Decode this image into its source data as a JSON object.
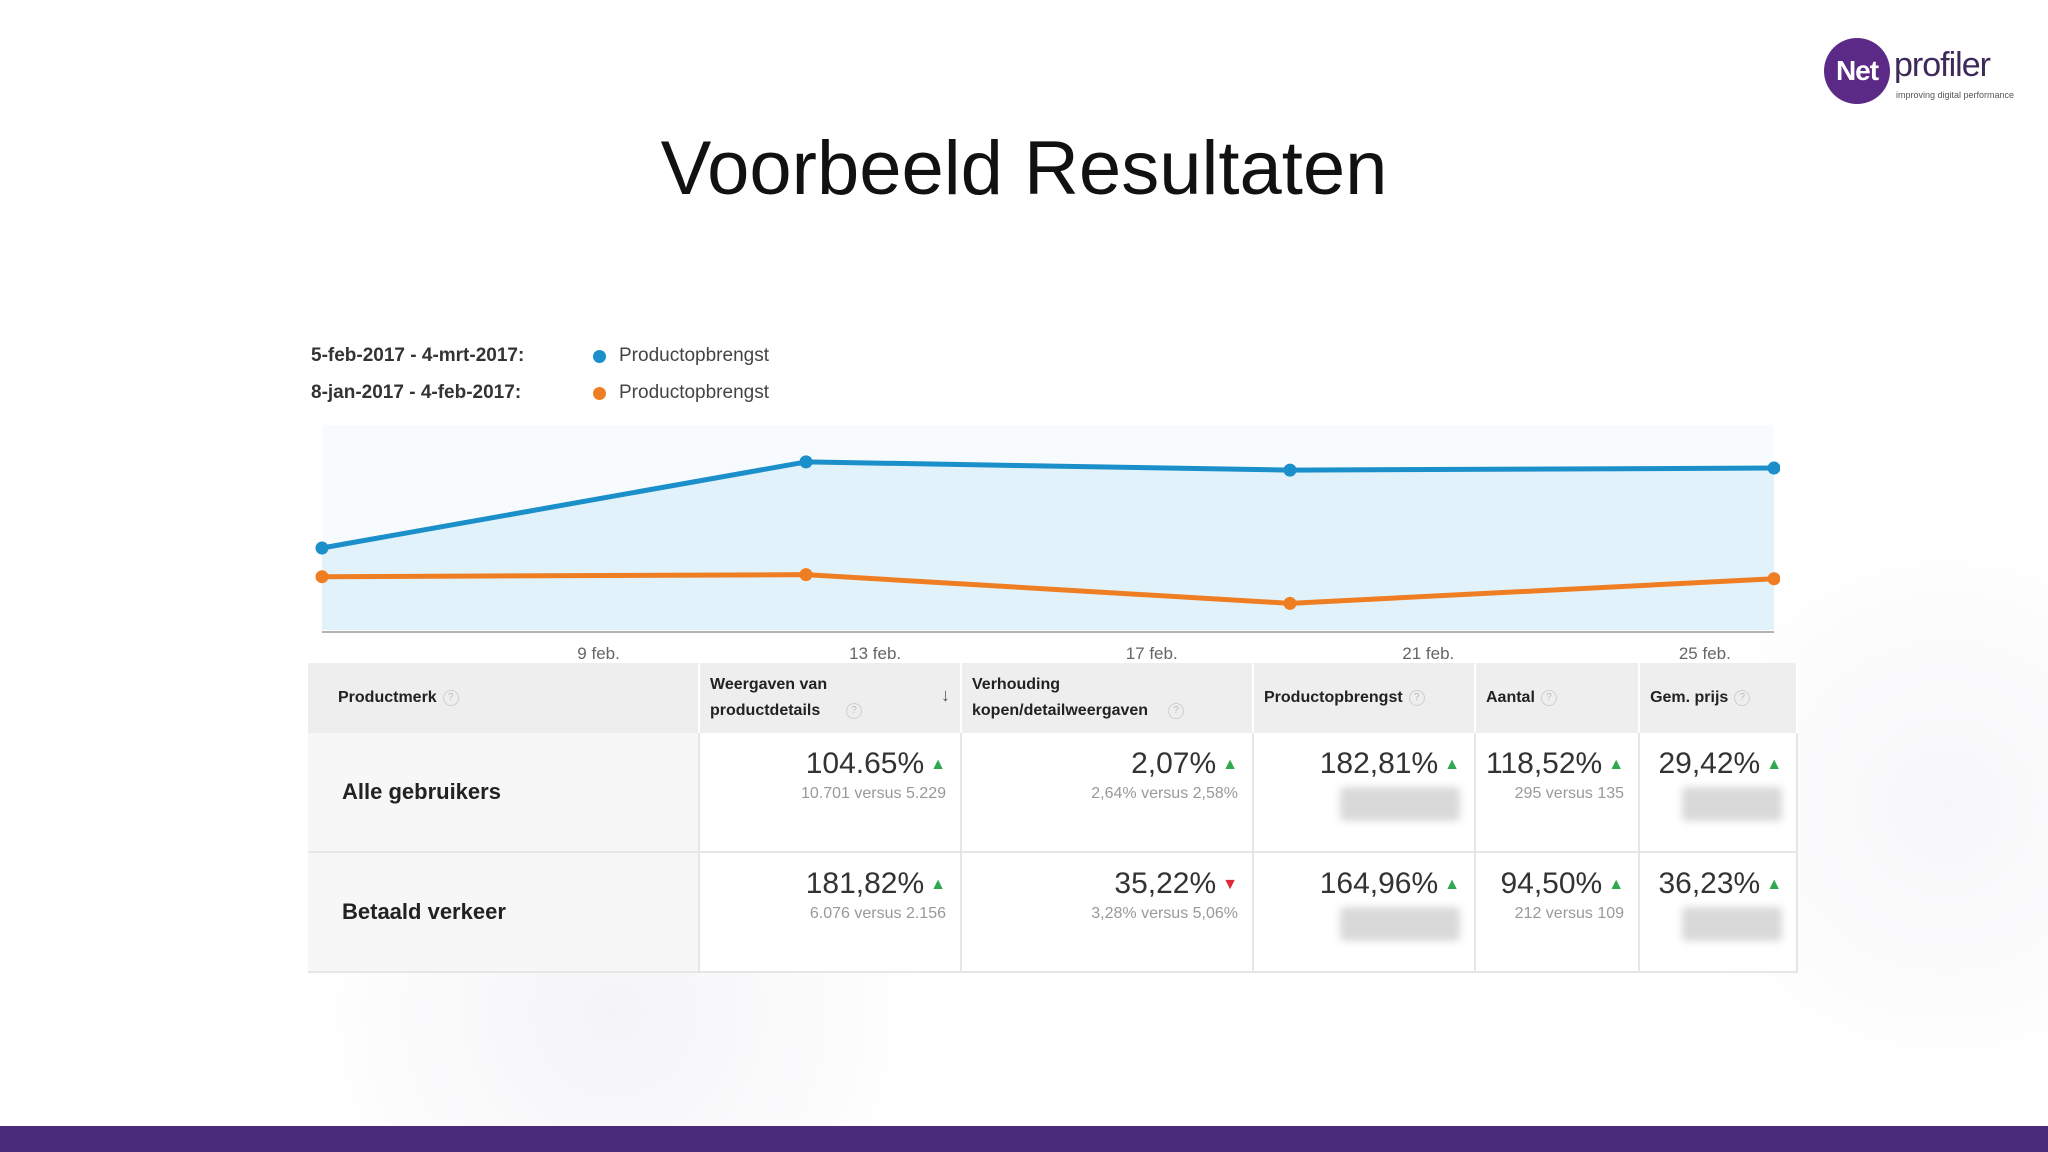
{
  "slide_title": "Voorbeeld Resultaten",
  "logo": {
    "mark": "Net",
    "word": "profiler",
    "tagline": "improving digital performance"
  },
  "colors": {
    "current": "#1a8fc9",
    "previous": "#ef7e22",
    "area": "#e2f2fa",
    "up": "#2fa84f",
    "down": "#e0283a",
    "bar": "#4a2a7a"
  },
  "legend": [
    {
      "range": "5-feb-2017 - 4-mrt-2017:",
      "metric": "Productopbrengst",
      "color": "#1a8fc9"
    },
    {
      "range": "8-jan-2017 - 4-feb-2017:",
      "metric": "Productopbrengst",
      "color": "#ef7e22"
    }
  ],
  "chart_data": {
    "type": "line",
    "x_ticks": [
      "9 feb.",
      "13 feb.",
      "17 feb.",
      "21 feb.",
      "25 feb."
    ],
    "x_tick_days": [
      4,
      8,
      12,
      16,
      20
    ],
    "x_range": [
      0,
      21
    ],
    "x": [
      0,
      7,
      14,
      21
    ],
    "ylim": [
      0,
      100
    ],
    "grid": false,
    "legend_position": "top-left",
    "series": [
      {
        "name": "Productopbrengst",
        "period": "5-feb-2017 - 4-mrt-2017",
        "values": [
          40,
          82,
          78,
          79
        ],
        "color": "#1a8fc9",
        "area": true
      },
      {
        "name": "Productopbrengst",
        "period": "8-jan-2017 - 4-feb-2017",
        "values": [
          26,
          27,
          13,
          25
        ],
        "color": "#ef7e22",
        "area": false
      }
    ]
  },
  "table": {
    "headers": [
      {
        "label": "Productmerk",
        "help": "?"
      },
      {
        "label": "Weergaven van productdetails",
        "help": "?",
        "sorted": "↓"
      },
      {
        "label": "Verhouding kopen/detailweergaven",
        "help": "?"
      },
      {
        "label": "Productopbrengst",
        "help": "?"
      },
      {
        "label": "Aantal",
        "help": "?"
      },
      {
        "label": "Gem. prijs",
        "help": "?"
      }
    ],
    "rows": [
      {
        "segment": "Alle gebruikers",
        "cells": [
          {
            "pct": "104.65%",
            "dir": "up",
            "cmp": "10.701 versus 5.229"
          },
          {
            "pct": "2,07%",
            "dir": "up",
            "cmp": "2,64% versus 2,58%"
          },
          {
            "pct": "182,81%",
            "dir": "up",
            "cmp": ""
          },
          {
            "pct": "118,52%",
            "dir": "up",
            "cmp": "295 versus 135"
          },
          {
            "pct": "29,42%",
            "dir": "up",
            "cmp": ""
          }
        ]
      },
      {
        "segment": "Betaald verkeer",
        "cells": [
          {
            "pct": "181,82%",
            "dir": "up",
            "cmp": "6.076 versus 2.156"
          },
          {
            "pct": "35,22%",
            "dir": "down",
            "cmp": "3,28% versus 5,06%"
          },
          {
            "pct": "164,96%",
            "dir": "up",
            "cmp": ""
          },
          {
            "pct": "94,50%",
            "dir": "up",
            "cmp": "212 versus 109"
          },
          {
            "pct": "36,23%",
            "dir": "up",
            "cmp": ""
          }
        ]
      }
    ]
  }
}
